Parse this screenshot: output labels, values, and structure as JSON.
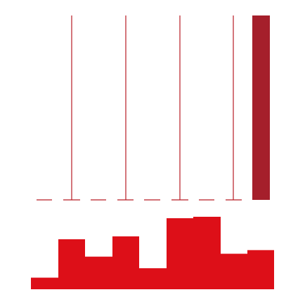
{
  "graphic": {
    "colors": {
      "background": "#ffffff",
      "lines": "#b81c24",
      "tall_bar": "#a51f2b",
      "histogram": "#dd0f18"
    },
    "upper_panel": {
      "vertical_line_count": 4,
      "dash_count": 8,
      "has_solid_bar": true
    },
    "histogram": {
      "bin_count": 9,
      "relative_heights": [
        0.16,
        0.69,
        0.45,
        0.73,
        0.29,
        0.98,
        1.0,
        0.49,
        0.54
      ]
    }
  }
}
